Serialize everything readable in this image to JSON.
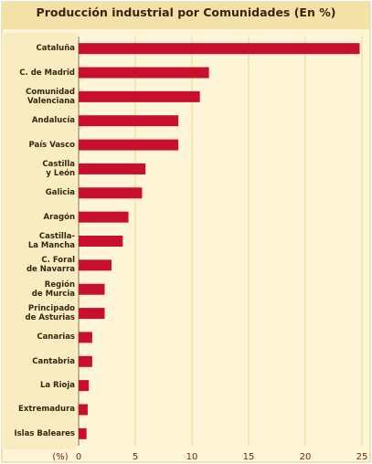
{
  "chart_data": {
    "type": "barh",
    "title": "Producción industrial por Comunidades (En %)",
    "x_label": "(%)",
    "categories": [
      "Cataluña",
      "C. de Madrid",
      "Comunidad\nValenciana",
      "Andalucía",
      "País Vasco",
      "Castilla\ny León",
      "Galicia",
      "Aragón",
      "Castilla-\nLa Mancha",
      "C. Foral\nde Navarra",
      "Región\nde Murcia",
      "Principado\nde Asturias",
      "Canarias",
      "Cantabria",
      "La Rioja",
      "Extremadura",
      "Islas Baleares"
    ],
    "values": [
      24.8,
      11.5,
      10.7,
      8.8,
      8.8,
      5.9,
      5.6,
      4.4,
      3.9,
      2.9,
      2.3,
      2.3,
      1.2,
      1.2,
      0.9,
      0.8,
      0.7
    ],
    "color": "#c8102e",
    "xlim": [
      0,
      25.5
    ],
    "xticks": [
      0,
      5,
      10,
      15,
      20,
      25
    ],
    "grid": true
  }
}
